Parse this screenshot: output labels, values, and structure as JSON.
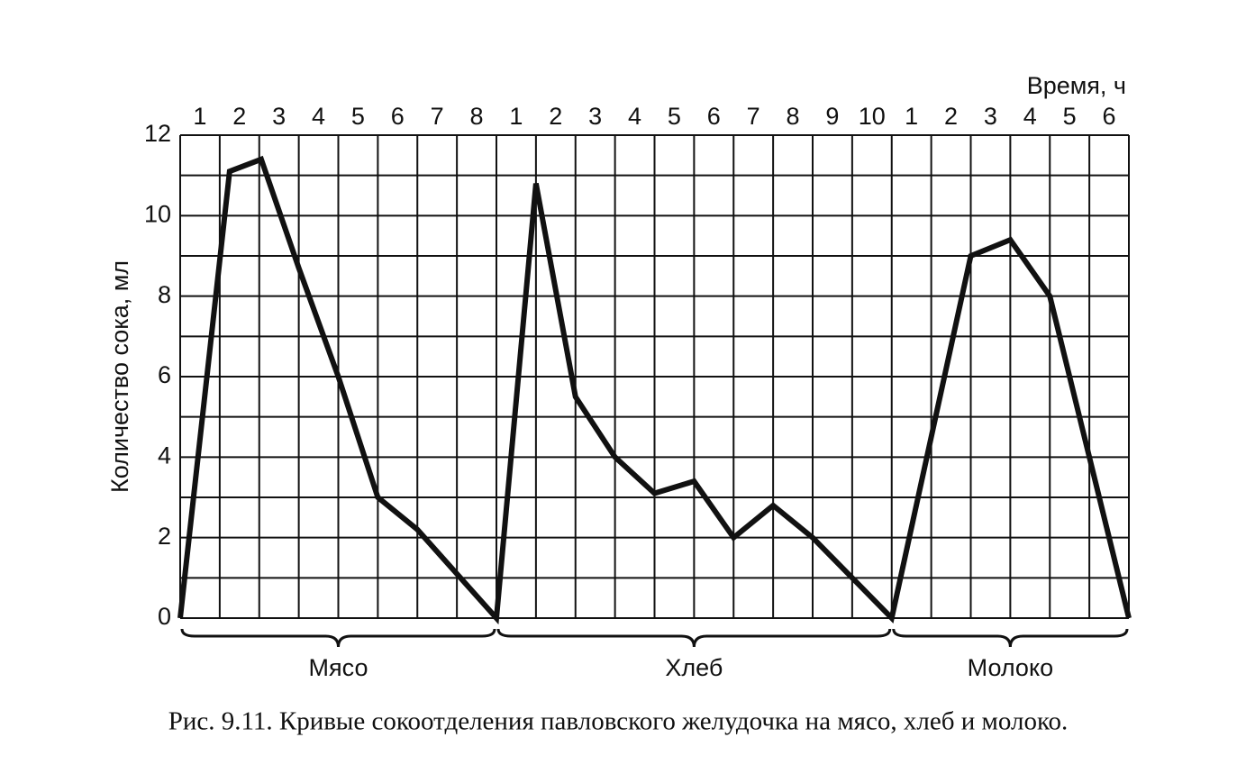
{
  "chart_data": {
    "type": "line",
    "x_label": "Время, ч",
    "y_label": "Количество сока, мл",
    "caption": "Рис. 9.11. Кривые сокоотделения павловского желудочка на мясо, хлеб и молоко.",
    "top_labels": [
      "1",
      "2",
      "3",
      "4",
      "5",
      "6",
      "7",
      "8",
      "1",
      "2",
      "3",
      "4",
      "5",
      "6",
      "7",
      "8",
      "9",
      "10",
      "1",
      "2",
      "3",
      "4",
      "5",
      "6"
    ],
    "xlim": [
      0,
      24
    ],
    "x_grid": [
      0,
      1,
      2,
      3,
      4,
      5,
      6,
      7,
      8,
      9,
      10,
      11,
      12,
      13,
      14,
      15,
      16,
      17,
      18,
      19,
      20,
      21,
      22,
      23,
      24
    ],
    "ylim": [
      0,
      12
    ],
    "yticks": [
      0,
      2,
      4,
      6,
      8,
      10,
      12
    ],
    "y_minor_grid": [
      1,
      3,
      5,
      7,
      9,
      11
    ],
    "grid": true,
    "series": [
      {
        "color": "#111111",
        "x": [
          0,
          1.25,
          2.05,
          3,
          4,
          5,
          6,
          7,
          8,
          9,
          10,
          11,
          12,
          13,
          14,
          15,
          16,
          17,
          18,
          19,
          20,
          21,
          22,
          23,
          24
        ],
        "values": [
          0,
          11.1,
          11.4,
          8.7,
          6,
          3,
          2.2,
          1.1,
          0,
          10.8,
          5.5,
          4,
          3.1,
          3.4,
          2,
          2.8,
          2,
          1,
          0,
          4.5,
          9,
          9.4,
          8,
          4,
          0
        ]
      }
    ],
    "groups": [
      {
        "label": "Мясо",
        "start": 0,
        "end": 8
      },
      {
        "label": "Хлеб",
        "start": 8,
        "end": 18
      },
      {
        "label": "Молоко",
        "start": 18,
        "end": 24
      }
    ]
  }
}
